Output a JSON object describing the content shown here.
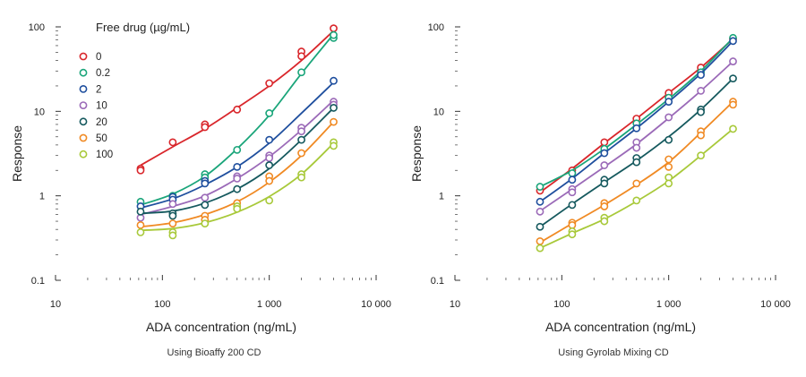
{
  "chart_data": [
    {
      "type": "scatter",
      "caption": "Using Bioaffy 200 CD",
      "xlabel": "ADA concentration (ng/mL)",
      "ylabel": "Response",
      "x_scale": "log",
      "y_scale": "log",
      "xlim": [
        10,
        10000
      ],
      "ylim": [
        0.1,
        100
      ],
      "x_ticks": [
        {
          "v": 10,
          "label": "10"
        },
        {
          "v": 100,
          "label": "100"
        },
        {
          "v": 1000,
          "label": "1 000"
        },
        {
          "v": 10000,
          "label": "10 000"
        }
      ],
      "y_ticks": [
        {
          "v": 0.1,
          "label": "0.1"
        },
        {
          "v": 1,
          "label": "1"
        },
        {
          "v": 10,
          "label": "10"
        },
        {
          "v": 100,
          "label": "100"
        }
      ],
      "legend": {
        "title": "Free drug (µg/mL)",
        "position": "top-left"
      },
      "series": [
        {
          "name": "0",
          "color": "#d9262b",
          "x": [
            62.5,
            62.5,
            125,
            250,
            250,
            500,
            1000,
            2000,
            2000,
            4000
          ],
          "y": [
            2.1,
            2.0,
            4.3,
            7.0,
            6.5,
            10.5,
            21.5,
            51,
            45,
            96
          ],
          "curve_x": [
            62.5,
            125,
            250,
            500,
            1000,
            2000,
            4000
          ],
          "curve_y": [
            2.3,
            3.8,
            6.2,
            11.0,
            20.0,
            40.0,
            90.0
          ]
        },
        {
          "name": "0.2",
          "color": "#1aa57a",
          "x": [
            62.5,
            125,
            250,
            250,
            500,
            1000,
            2000,
            4000,
            4000
          ],
          "y": [
            0.85,
            1.0,
            1.8,
            1.65,
            3.5,
            9.5,
            29,
            74,
            80
          ],
          "curve_x": [
            62.5,
            125,
            250,
            500,
            1000,
            2000,
            4000
          ],
          "curve_y": [
            0.78,
            1.05,
            1.7,
            3.6,
            9.0,
            28.0,
            82.0
          ]
        },
        {
          "name": "2",
          "color": "#1f4f9e",
          "x": [
            62.5,
            125,
            125,
            250,
            250,
            500,
            1000,
            4000
          ],
          "y": [
            0.75,
            0.97,
            0.9,
            1.5,
            1.4,
            2.2,
            4.6,
            23
          ],
          "curve_x": [
            62.5,
            125,
            250,
            500,
            1000,
            2000,
            4000
          ],
          "curve_y": [
            0.72,
            0.92,
            1.35,
            2.2,
            4.2,
            9.5,
            22.0
          ]
        },
        {
          "name": "10",
          "color": "#9b6ab8",
          "x": [
            62.5,
            125,
            250,
            500,
            500,
            1000,
            1000,
            2000,
            2000,
            4000,
            4000
          ],
          "y": [
            0.55,
            0.8,
            0.95,
            1.7,
            1.6,
            3.0,
            2.8,
            6.4,
            5.8,
            13.0,
            12.0
          ],
          "curve_x": [
            62.5,
            125,
            250,
            500,
            1000,
            2000,
            4000
          ],
          "curve_y": [
            0.6,
            0.75,
            1.0,
            1.6,
            2.9,
            6.0,
            13.5
          ]
        },
        {
          "name": "20",
          "color": "#15595e",
          "x": [
            62.5,
            125,
            125,
            250,
            500,
            1000,
            2000,
            4000
          ],
          "y": [
            0.65,
            0.62,
            0.58,
            0.78,
            1.2,
            2.3,
            4.6,
            11.0
          ],
          "curve_x": [
            62.5,
            125,
            250,
            500,
            1000,
            2000,
            4000
          ],
          "curve_y": [
            0.62,
            0.66,
            0.82,
            1.2,
            2.1,
            4.6,
            11.0
          ]
        },
        {
          "name": "50",
          "color": "#f08a24",
          "x": [
            62.5,
            125,
            250,
            250,
            500,
            1000,
            1000,
            2000,
            4000
          ],
          "y": [
            0.45,
            0.47,
            0.58,
            0.52,
            0.82,
            1.7,
            1.5,
            3.2,
            7.5
          ],
          "curve_x": [
            62.5,
            125,
            250,
            500,
            1000,
            2000,
            4000
          ],
          "curve_y": [
            0.43,
            0.48,
            0.6,
            0.85,
            1.45,
            3.0,
            7.5
          ]
        },
        {
          "name": "100",
          "color": "#a8c93a",
          "x": [
            62.5,
            125,
            125,
            250,
            500,
            500,
            1000,
            2000,
            2000,
            4000,
            4000
          ],
          "y": [
            0.37,
            0.37,
            0.34,
            0.47,
            0.75,
            0.7,
            0.88,
            1.8,
            1.65,
            4.3,
            3.9
          ],
          "curve_x": [
            62.5,
            125,
            250,
            500,
            1000,
            2000,
            4000
          ],
          "curve_y": [
            0.39,
            0.41,
            0.48,
            0.64,
            0.98,
            1.8,
            4.2
          ]
        }
      ]
    },
    {
      "type": "scatter",
      "caption": "Using Gyrolab Mixing CD",
      "xlabel": "ADA concentration (ng/mL)",
      "ylabel": "Response",
      "x_scale": "log",
      "y_scale": "log",
      "xlim": [
        10,
        10000
      ],
      "ylim": [
        0.1,
        100
      ],
      "x_ticks": [
        {
          "v": 10,
          "label": "10"
        },
        {
          "v": 100,
          "label": "100"
        },
        {
          "v": 1000,
          "label": "1 000"
        },
        {
          "v": 10000,
          "label": "10 000"
        }
      ],
      "y_ticks": [
        {
          "v": 0.1,
          "label": "0.1"
        },
        {
          "v": 1,
          "label": "1"
        },
        {
          "v": 10,
          "label": "10"
        },
        {
          "v": 100,
          "label": "100"
        }
      ],
      "series": [
        {
          "name": "0",
          "color": "#d9262b",
          "x": [
            62.5,
            125,
            250,
            500,
            1000,
            2000,
            4000
          ],
          "y": [
            1.15,
            2.0,
            4.3,
            8.2,
            16.5,
            33.0,
            72.0
          ],
          "curve_x": [
            62.5,
            125,
            250,
            500,
            1000,
            2000,
            4000
          ],
          "curve_y": [
            1.1,
            2.1,
            4.2,
            8.2,
            16.5,
            33.0,
            72.0
          ]
        },
        {
          "name": "0.2",
          "color": "#1aa57a",
          "x": [
            62.5,
            125,
            250,
            500,
            1000,
            2000,
            4000
          ],
          "y": [
            1.28,
            1.85,
            3.6,
            7.2,
            14.5,
            29.0,
            74.0
          ],
          "curve_x": [
            62.5,
            125,
            250,
            500,
            1000,
            2000,
            4000
          ],
          "curve_y": [
            1.28,
            2.0,
            3.6,
            7.0,
            14.0,
            30.0,
            74.0
          ]
        },
        {
          "name": "2",
          "color": "#1f4f9e",
          "x": [
            62.5,
            125,
            250,
            500,
            1000,
            2000,
            4000
          ],
          "y": [
            0.85,
            1.55,
            3.2,
            6.3,
            13.0,
            27.0,
            68.0
          ],
          "curve_x": [
            62.5,
            125,
            250,
            500,
            1000,
            2000,
            4000
          ],
          "curve_y": [
            0.85,
            1.6,
            3.2,
            6.3,
            13.0,
            28.0,
            68.0
          ]
        },
        {
          "name": "10",
          "color": "#9b6ab8",
          "x": [
            62.5,
            125,
            125,
            250,
            500,
            500,
            1000,
            2000,
            4000
          ],
          "y": [
            0.65,
            1.2,
            1.1,
            2.3,
            4.3,
            3.7,
            8.5,
            17.5,
            39.0
          ],
          "curve_x": [
            62.5,
            125,
            250,
            500,
            1000,
            2000,
            4000
          ],
          "curve_y": [
            0.66,
            1.2,
            2.2,
            4.1,
            8.3,
            17.5,
            39.0
          ]
        },
        {
          "name": "20",
          "color": "#15595e",
          "x": [
            62.5,
            125,
            250,
            250,
            500,
            500,
            1000,
            2000,
            2000,
            4000
          ],
          "y": [
            0.43,
            0.78,
            1.55,
            1.4,
            2.8,
            2.5,
            4.6,
            10.5,
            9.8,
            24.5
          ],
          "curve_x": [
            62.5,
            125,
            250,
            500,
            1000,
            2000,
            4000
          ],
          "curve_y": [
            0.43,
            0.8,
            1.45,
            2.6,
            5.0,
            10.5,
            24.5
          ]
        },
        {
          "name": "50",
          "color": "#f08a24",
          "x": [
            62.5,
            125,
            125,
            250,
            250,
            500,
            1000,
            1000,
            2000,
            2000,
            4000,
            4000
          ],
          "y": [
            0.29,
            0.48,
            0.45,
            0.82,
            0.75,
            1.4,
            2.7,
            2.2,
            5.8,
            5.2,
            13.0,
            12.0
          ],
          "curve_x": [
            62.5,
            125,
            250,
            500,
            1000,
            2000,
            4000
          ],
          "curve_y": [
            0.28,
            0.47,
            0.78,
            1.35,
            2.5,
            5.6,
            13.0
          ]
        },
        {
          "name": "100",
          "color": "#a8c93a",
          "x": [
            62.5,
            125,
            125,
            250,
            250,
            500,
            1000,
            1000,
            2000,
            4000
          ],
          "y": [
            0.24,
            0.38,
            0.35,
            0.55,
            0.5,
            0.88,
            1.65,
            1.4,
            3.0,
            6.2
          ],
          "curve_x": [
            62.5,
            125,
            250,
            500,
            1000,
            2000,
            4000
          ],
          "curve_y": [
            0.24,
            0.36,
            0.53,
            0.86,
            1.5,
            3.0,
            6.2
          ]
        }
      ]
    }
  ]
}
